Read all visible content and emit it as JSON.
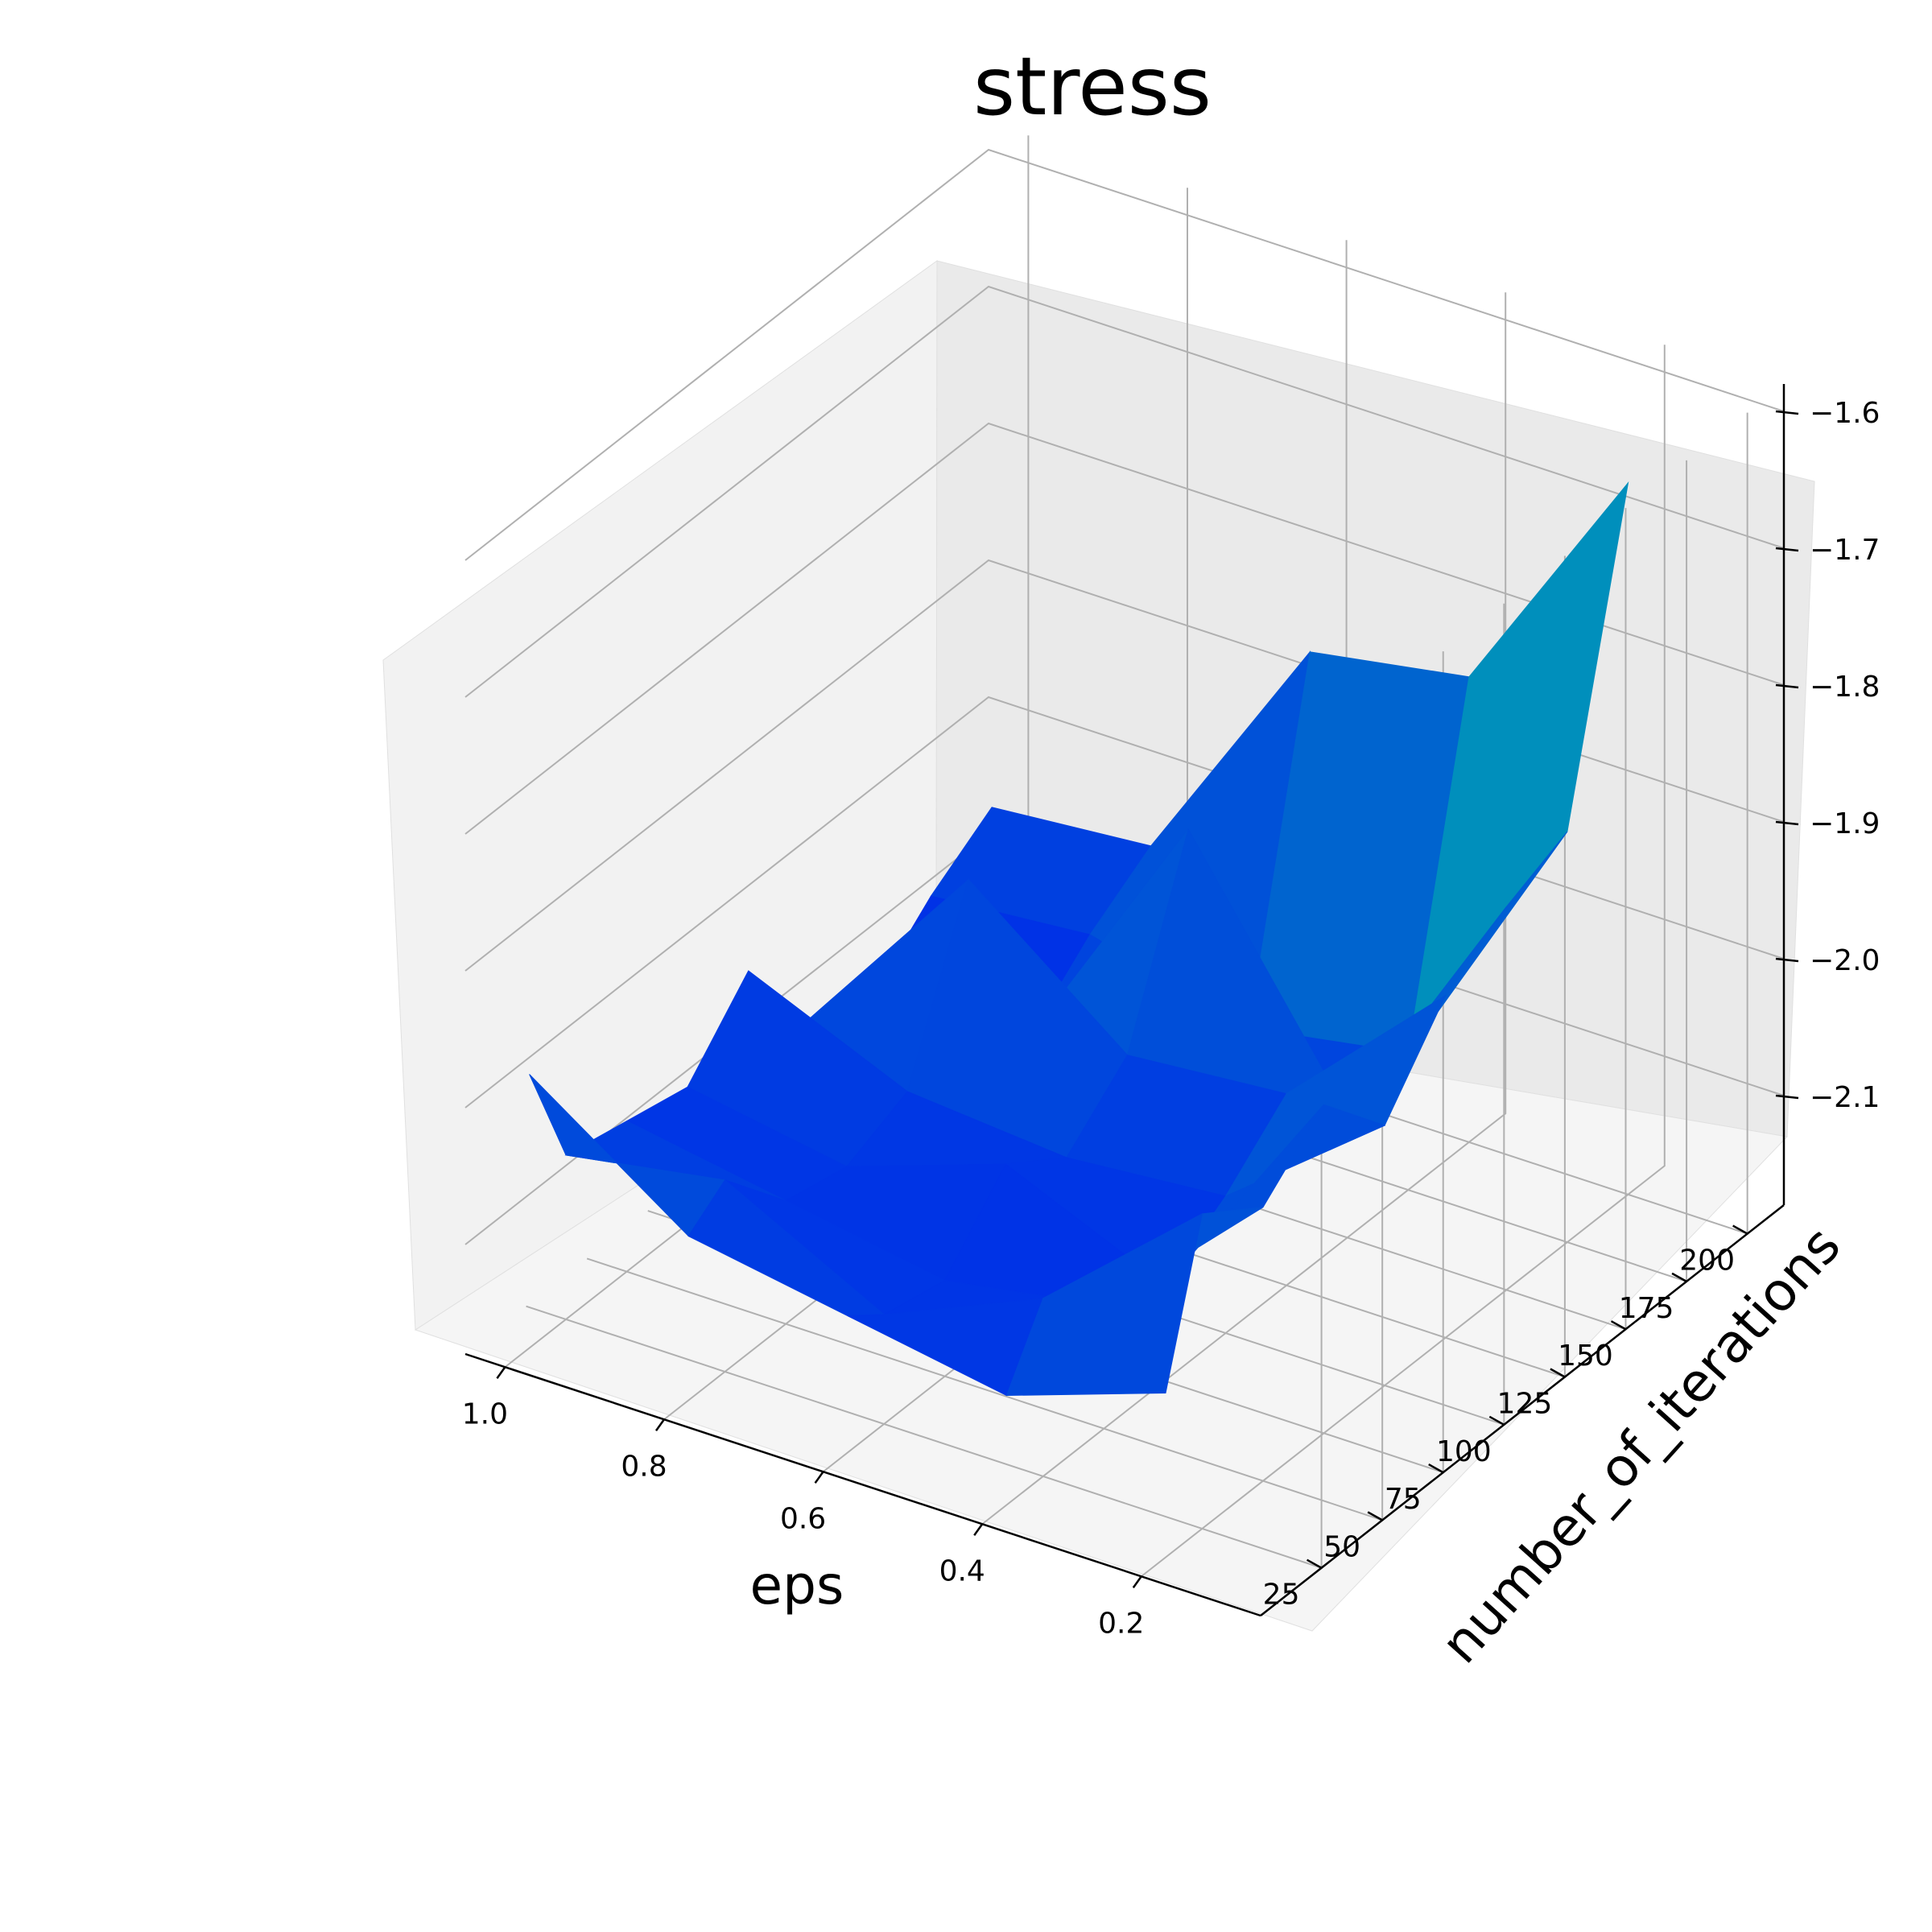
{
  "chart_data": {
    "type": "surface",
    "title": "stress",
    "xlabel": "eps",
    "ylabel": "number_of_iterations",
    "zlabel": "",
    "xlim": [
      0.05,
      1.05
    ],
    "ylim": [
      0,
      215
    ],
    "zlim": [
      -2.18,
      -1.58
    ],
    "x_ticks": [
      "1.0",
      "0.8",
      "0.6",
      "0.4",
      "0.2"
    ],
    "x_tick_values": [
      1.0,
      0.8,
      0.6,
      0.4,
      0.2
    ],
    "y_ticks": [
      "25",
      "50",
      "75",
      "100",
      "125",
      "150",
      "175",
      "200"
    ],
    "y_tick_values": [
      25,
      50,
      75,
      100,
      125,
      150,
      175,
      200
    ],
    "z_ticks": [
      "−1.6",
      "−1.7",
      "−1.8",
      "−1.9",
      "−2.0",
      "−2.1"
    ],
    "z_tick_values": [
      -1.6,
      -1.7,
      -1.8,
      -1.9,
      -2.0,
      -2.1
    ],
    "grid": true,
    "colormap": "winter",
    "colors": {
      "low": "#0000ff",
      "high": "#00ff80",
      "pane": "#f2f2f2",
      "pane_side": "#eaeaea",
      "grid": "#b0b0b0"
    },
    "eps_values": [
      1.0,
      0.8,
      0.6,
      0.4,
      0.2
    ],
    "iteration_values": [
      10,
      25,
      50,
      75,
      100,
      125,
      150,
      175,
      200
    ],
    "stress_values": [
      [
        -1.98,
        -2.06,
        -2.07,
        -2.08,
        -2.03,
        -2.1,
        -2.12,
        -2.08,
        -2.05
      ],
      [
        -2.06,
        -2.04,
        -2.09,
        -2.1,
        -2.08,
        -1.96,
        -2.11,
        -2.07,
        -2.04
      ],
      [
        -2.08,
        -2.1,
        -2.11,
        -2.06,
        -2.09,
        -2.05,
        -1.92,
        -2.1,
        -1.86
      ],
      [
        -2.1,
        -2.05,
        -2.09,
        -2.11,
        -2.08,
        -2.04,
        -2.09,
        -2.08,
        -1.84
      ],
      [
        -2.06,
        -1.95,
        -1.98,
        -1.94,
        -1.99,
        -1.93,
        -1.9,
        -1.88,
        -1.66
      ]
    ]
  }
}
